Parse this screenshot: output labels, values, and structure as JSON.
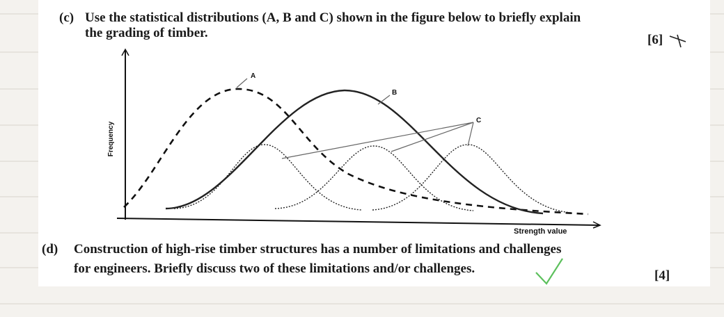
{
  "question_c": {
    "label": "(c)",
    "lines": [
      "Use the statistical distributions (A, B and C) shown in the figure below to briefly explain",
      "the grading of timber."
    ],
    "marks": "[6]"
  },
  "figure": {
    "y_axis_label": "Frequency",
    "x_axis_label": "Strength value",
    "label_a": "A",
    "label_b": "B",
    "label_c": "C"
  },
  "question_d": {
    "label": "(d)",
    "lines": [
      "Construction of high-rise timber structures has a number of limitations and challenges",
      "for engineers. Briefly discuss two of these limitations and/or challenges."
    ],
    "marks": "[4]"
  }
}
